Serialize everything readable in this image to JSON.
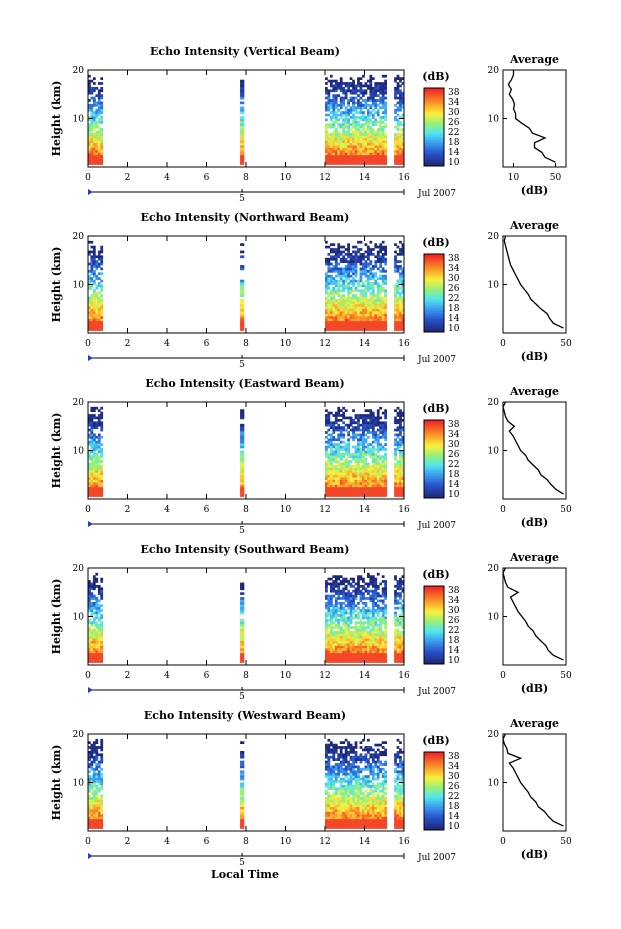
{
  "figure": {
    "xlabel": "Local Time",
    "date_label": "Jul 2007",
    "day_label": "5",
    "average_title": "Average",
    "ylabel": "Height (km)",
    "colorbar_unit": "(dB)",
    "average_xlabel": "(dB)",
    "colorbar_ticks": [
      "10",
      "14",
      "18",
      "22",
      "26",
      "30",
      "34",
      "38"
    ]
  },
  "chart_data": [
    {
      "type": "heatmap",
      "title": "Echo Intensity (Vertical Beam)",
      "xlabel": "Local Time",
      "ylabel": "Height (km)",
      "xlim": [
        0,
        16
      ],
      "ylim": [
        0,
        20
      ],
      "x_ticks": [
        0,
        2,
        4,
        6,
        8,
        10,
        12,
        14,
        16
      ],
      "y_ticks": [
        10,
        20
      ],
      "color_range_db": [
        10,
        38
      ],
      "data_windows_hours": [
        [
          0,
          0.7
        ],
        [
          7.7,
          7.9
        ],
        [
          12,
          15.1
        ],
        [
          15.5,
          16
        ]
      ],
      "average_profile": {
        "xlim": [
          0,
          60
        ],
        "x_ticks": [
          10,
          50
        ],
        "ylim": [
          0,
          20
        ],
        "y_ticks": [
          10,
          20
        ],
        "height_km": [
          1,
          2,
          3,
          4,
          5,
          6,
          7,
          8,
          9,
          10,
          11,
          12,
          13,
          14,
          15,
          16,
          17,
          18,
          19,
          20
        ],
        "db": [
          50,
          40,
          37,
          30,
          30,
          40,
          28,
          25,
          18,
          12,
          12,
          10,
          11,
          9,
          6,
          8,
          5,
          8,
          10,
          10
        ]
      }
    },
    {
      "type": "heatmap",
      "title": "Echo Intensity (Northward Beam)",
      "xlabel": "Local Time",
      "ylabel": "Height (km)",
      "xlim": [
        0,
        16
      ],
      "ylim": [
        0,
        20
      ],
      "x_ticks": [
        0,
        2,
        4,
        6,
        8,
        10,
        12,
        14,
        16
      ],
      "y_ticks": [
        10,
        20
      ],
      "color_range_db": [
        10,
        38
      ],
      "data_windows_hours": [
        [
          0,
          0.7
        ],
        [
          7.7,
          7.9
        ],
        [
          12,
          15.1
        ],
        [
          15.5,
          16
        ]
      ],
      "average_profile": {
        "xlim": [
          0,
          50
        ],
        "x_ticks": [
          0,
          50
        ],
        "ylim": [
          0,
          20
        ],
        "y_ticks": [
          10,
          20
        ],
        "height_km": [
          1,
          2,
          3,
          4,
          5,
          6,
          7,
          8,
          9,
          10,
          11,
          12,
          13,
          14,
          15,
          16,
          17,
          18,
          19,
          20
        ],
        "db": [
          48,
          40,
          37,
          35,
          30,
          26,
          22,
          20,
          17,
          14,
          12,
          10,
          8,
          6,
          5,
          4,
          3,
          2,
          1,
          2
        ]
      }
    },
    {
      "type": "heatmap",
      "title": "Echo Intensity (Eastward Beam)",
      "xlabel": "Local Time",
      "ylabel": "Height (km)",
      "xlim": [
        0,
        16
      ],
      "ylim": [
        0,
        20
      ],
      "x_ticks": [
        0,
        2,
        4,
        6,
        8,
        10,
        12,
        14,
        16
      ],
      "y_ticks": [
        10,
        20
      ],
      "color_range_db": [
        10,
        38
      ],
      "data_windows_hours": [
        [
          0,
          0.7
        ],
        [
          7.7,
          7.9
        ],
        [
          12,
          15.1
        ],
        [
          15.5,
          16
        ]
      ],
      "average_profile": {
        "xlim": [
          0,
          50
        ],
        "x_ticks": [
          0,
          50
        ],
        "ylim": [
          0,
          20
        ],
        "y_ticks": [
          10,
          20
        ],
        "height_km": [
          1,
          2,
          3,
          4,
          5,
          6,
          7,
          8,
          9,
          10,
          11,
          12,
          13,
          14,
          15,
          16,
          17,
          18,
          19,
          20
        ],
        "db": [
          48,
          42,
          38,
          35,
          30,
          28,
          24,
          20,
          18,
          14,
          12,
          10,
          8,
          5,
          9,
          4,
          2,
          1,
          0,
          2
        ]
      }
    },
    {
      "type": "heatmap",
      "title": "Echo Intensity (Southward Beam)",
      "xlabel": "Local Time",
      "ylabel": "Height (km)",
      "xlim": [
        0,
        16
      ],
      "ylim": [
        0,
        20
      ],
      "x_ticks": [
        0,
        2,
        4,
        6,
        8,
        10,
        12,
        14,
        16
      ],
      "y_ticks": [
        10,
        20
      ],
      "color_range_db": [
        10,
        38
      ],
      "data_windows_hours": [
        [
          0,
          0.7
        ],
        [
          7.7,
          7.9
        ],
        [
          12,
          15.1
        ],
        [
          15.5,
          16
        ]
      ],
      "average_profile": {
        "xlim": [
          0,
          50
        ],
        "x_ticks": [
          0,
          50
        ],
        "ylim": [
          0,
          20
        ],
        "y_ticks": [
          10,
          20
        ],
        "height_km": [
          1,
          2,
          3,
          4,
          5,
          6,
          7,
          8,
          9,
          10,
          11,
          12,
          13,
          14,
          15,
          16,
          17,
          18,
          19,
          20
        ],
        "db": [
          48,
          40,
          36,
          34,
          30,
          26,
          24,
          20,
          18,
          15,
          12,
          10,
          8,
          6,
          12,
          4,
          2,
          1,
          0,
          2
        ]
      }
    },
    {
      "type": "heatmap",
      "title": "Echo Intensity (Westward Beam)",
      "xlabel": "Local Time",
      "ylabel": "Height (km)",
      "xlim": [
        0,
        16
      ],
      "ylim": [
        0,
        20
      ],
      "x_ticks": [
        0,
        2,
        4,
        6,
        8,
        10,
        12,
        14,
        16
      ],
      "y_ticks": [
        10,
        20
      ],
      "color_range_db": [
        10,
        38
      ],
      "data_windows_hours": [
        [
          0,
          0.7
        ],
        [
          7.7,
          7.9
        ],
        [
          12,
          15.1
        ],
        [
          15.5,
          16
        ]
      ],
      "average_profile": {
        "xlim": [
          0,
          50
        ],
        "x_ticks": [
          0,
          50
        ],
        "ylim": [
          0,
          20
        ],
        "y_ticks": [
          10,
          20
        ],
        "height_km": [
          1,
          2,
          3,
          4,
          5,
          6,
          7,
          8,
          9,
          10,
          11,
          12,
          13,
          14,
          15,
          16,
          17,
          18,
          19,
          20
        ],
        "db": [
          48,
          40,
          36,
          33,
          28,
          26,
          22,
          20,
          17,
          14,
          12,
          10,
          8,
          5,
          14,
          4,
          3,
          1,
          0,
          2
        ]
      }
    }
  ]
}
